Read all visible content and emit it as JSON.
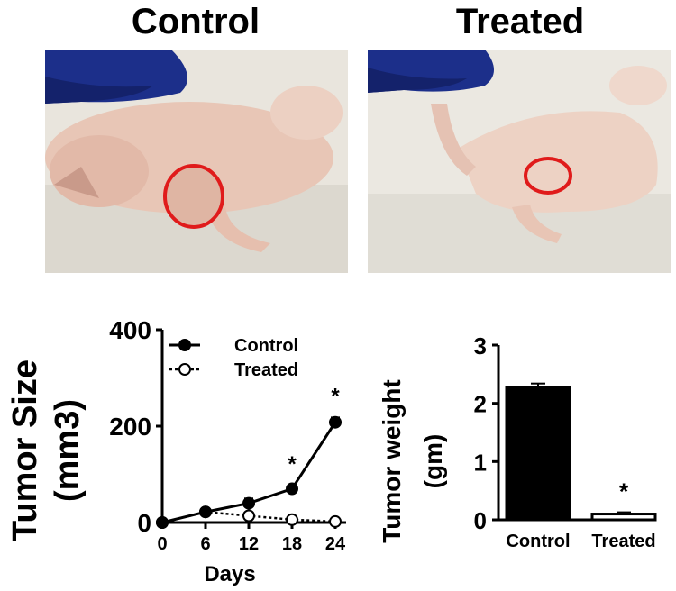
{
  "panels": {
    "left_title": "Control",
    "right_title": "Treated"
  },
  "chart_data": [
    {
      "type": "line",
      "xlabel": "Days",
      "ylabel": "Tumor Size\n(mm3)",
      "ylabel_lines": [
        "Tumor Size",
        "(mm3)"
      ],
      "x": [
        0,
        6,
        12,
        18,
        24
      ],
      "xlim": [
        0,
        24
      ],
      "ylim": [
        0,
        400
      ],
      "yticks": [
        0,
        200,
        400
      ],
      "legend_position": "top-left",
      "series": [
        {
          "name": "Control",
          "marker": "filled-circle",
          "line": "solid",
          "values": [
            0,
            22,
            40,
            70,
            208
          ],
          "errors": [
            0,
            4,
            10,
            7,
            10
          ]
        },
        {
          "name": "Treated",
          "marker": "open-circle",
          "line": "dotted",
          "values": [
            0,
            22,
            14,
            6,
            2
          ],
          "errors": [
            0,
            2,
            3,
            2,
            1
          ]
        }
      ],
      "annotations": [
        {
          "x": 18,
          "text": "*"
        },
        {
          "x": 24,
          "text": "*"
        }
      ]
    },
    {
      "type": "bar",
      "ylabel": "Tumor weight\n(gm)",
      "ylabel_lines": [
        "Tumor weight",
        "(gm)"
      ],
      "categories": [
        "Control",
        "Treated"
      ],
      "values": [
        2.28,
        0.1
      ],
      "errors": [
        0.06,
        0.03
      ],
      "bar_colors": [
        "#000000",
        "#ffffff"
      ],
      "ylim": [
        0,
        3
      ],
      "yticks": [
        0,
        1,
        2,
        3
      ],
      "annotations": [
        {
          "category": "Treated",
          "text": "*"
        }
      ]
    }
  ]
}
